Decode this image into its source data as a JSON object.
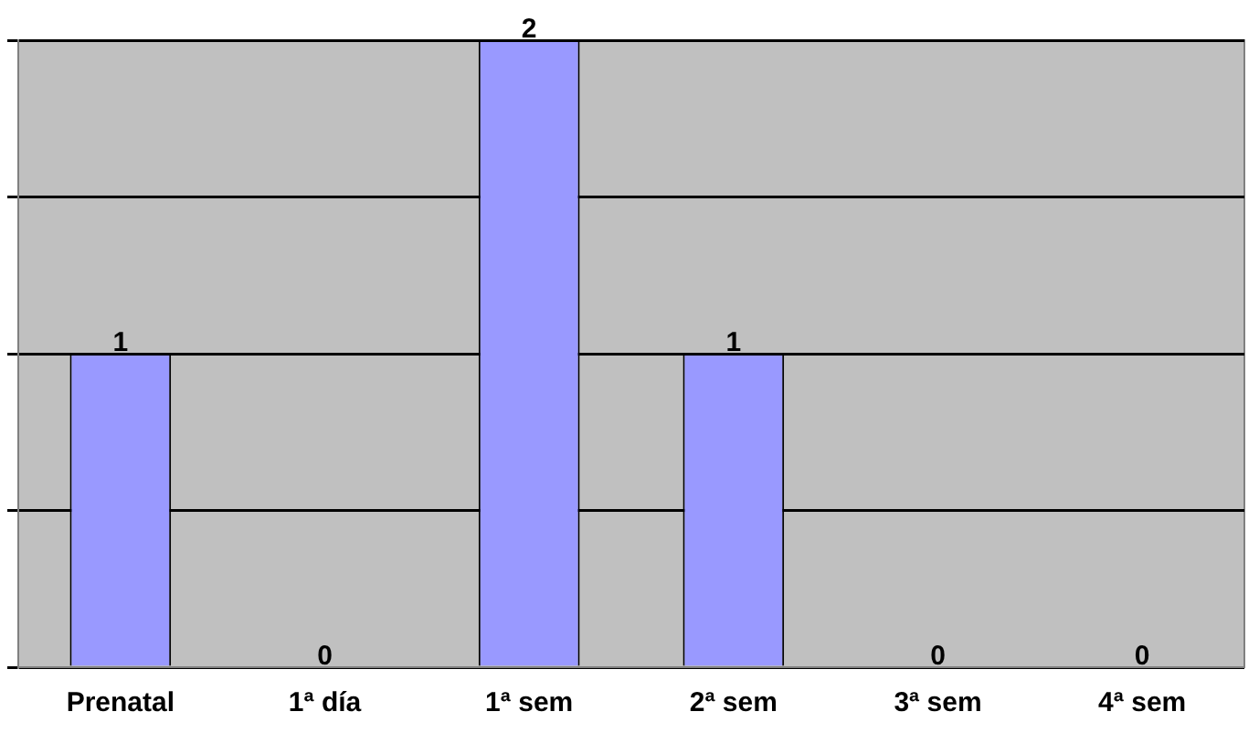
{
  "chart_data": {
    "type": "bar",
    "categories": [
      "Prenatal",
      "1ª día",
      "1ª sem",
      "2ª sem",
      "3ª sem",
      "4ª sem"
    ],
    "values": [
      1,
      0,
      2,
      1,
      0,
      0
    ],
    "color": "#9999ff",
    "ylim": [
      0,
      2
    ],
    "yticks": [
      {
        "value": 0,
        "label": null
      },
      {
        "value": 0.5,
        "label": null
      },
      {
        "value": 1,
        "label": null
      },
      {
        "value": 1.5,
        "label": null
      },
      {
        "value": 2,
        "label": null
      }
    ],
    "grid": "y",
    "tick_labels": "x",
    "data_labels": true,
    "legend": false
  }
}
